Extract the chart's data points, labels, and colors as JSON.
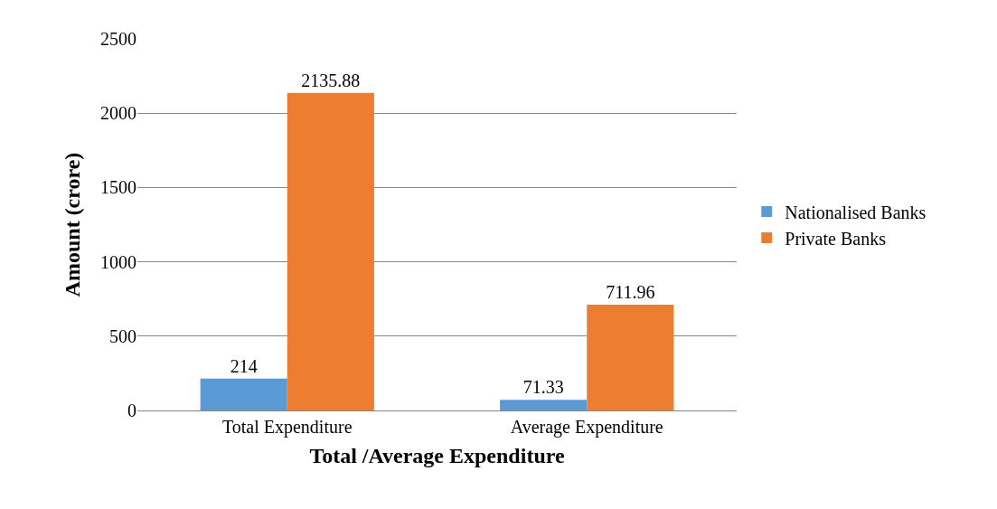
{
  "chart_data": {
    "type": "bar",
    "xlabel": "Total /Average Expenditure",
    "ylabel": "Amount (crore)",
    "categories": [
      "Total Expenditure",
      "Average Expenditure"
    ],
    "series": [
      {
        "name": "Nationalised Banks",
        "color": "#5b9bd5",
        "values": [
          214,
          71.33
        ]
      },
      {
        "name": "Private Banks",
        "color": "#ed7d31",
        "values": [
          2135.88,
          711.96
        ]
      }
    ],
    "ylim": [
      0,
      2500
    ],
    "yticks": [
      0,
      500,
      1000,
      1500,
      2000,
      2500
    ],
    "grid": "y",
    "legend": "right",
    "data_labels": true
  }
}
